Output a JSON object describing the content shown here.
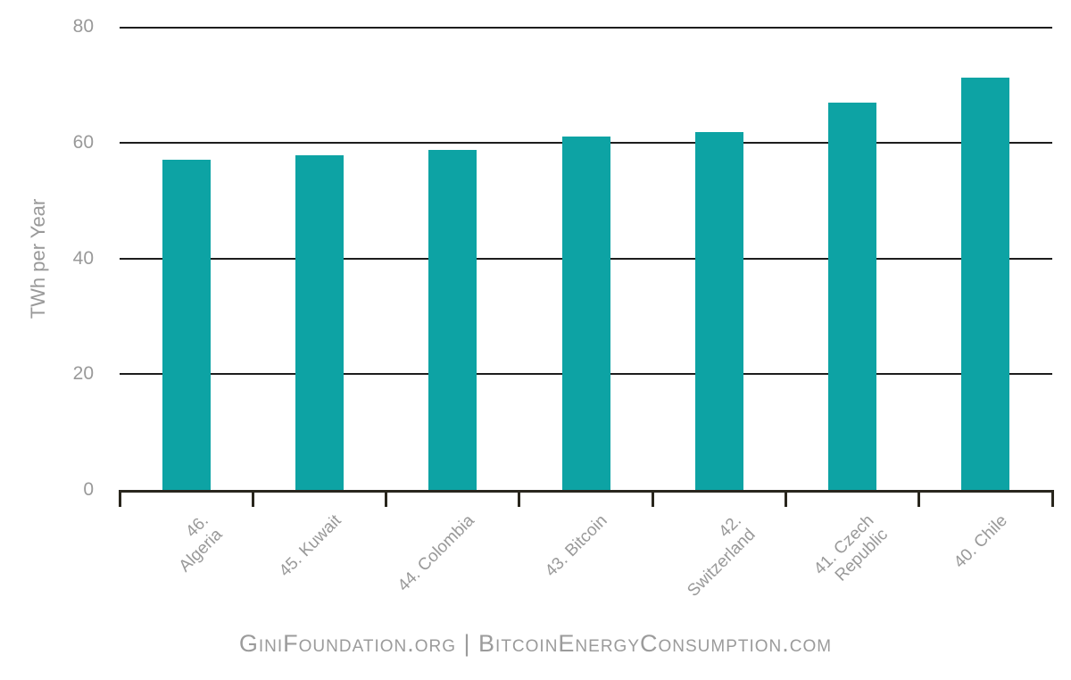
{
  "chart_data": {
    "type": "bar",
    "title": "",
    "xlabel": "",
    "ylabel": "TWh per Year",
    "categories": [
      "46. Algeria",
      "45. Kuwait",
      "44. Colombia",
      "43. Bitcoin",
      "42.\nSwitzerland",
      "41. Czech\nRepublic",
      "40. Chile"
    ],
    "values": [
      57.0,
      57.8,
      58.7,
      61.1,
      61.8,
      66.9,
      71.2
    ],
    "ylim": [
      0,
      80
    ],
    "yticks": [
      0,
      20,
      40,
      60,
      80
    ],
    "grid": "horizontal gridlines at 20,40,60,80",
    "legend_position": "none",
    "bar_color": "#0da3a4",
    "gridline_color": "#1d1d1d",
    "axis_color": "#29261d",
    "label_color": "#999999"
  },
  "footer": {
    "text": "GiniFoundation.org | BitcoinEnergyConsumption.com"
  }
}
